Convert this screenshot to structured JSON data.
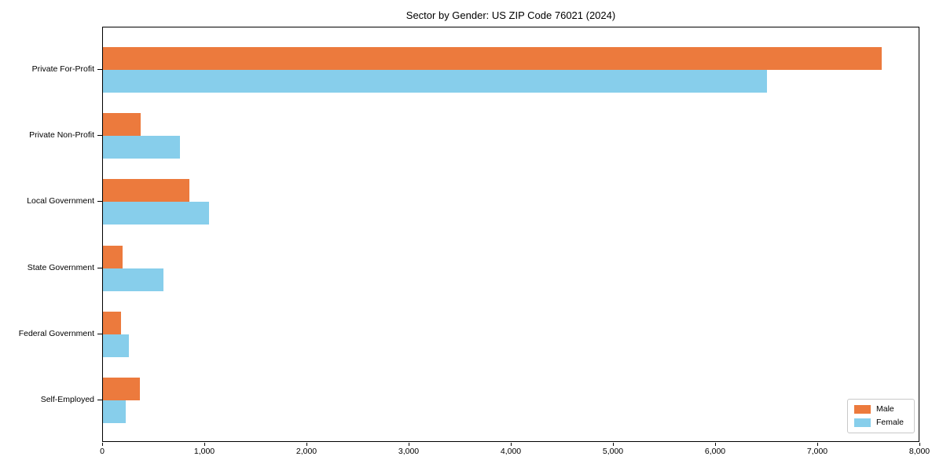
{
  "chart_data": {
    "type": "bar",
    "orientation": "horizontal",
    "title": "Sector by Gender: US ZIP Code 76021 (2024)",
    "categories": [
      "Private For-Profit",
      "Private Non-Profit",
      "Local Government",
      "State Government",
      "Federal Government",
      "Self-Employed"
    ],
    "series": [
      {
        "name": "Male",
        "color": "#EC7A3D",
        "values": [
          7640,
          370,
          845,
          190,
          180,
          365
        ]
      },
      {
        "name": "Female",
        "color": "#87CEEB",
        "values": [
          6510,
          755,
          1040,
          590,
          255,
          225
        ]
      }
    ],
    "xlabel": "",
    "ylabel": "",
    "xlim": [
      0,
      8000
    ],
    "x_ticks": [
      0,
      1000,
      2000,
      3000,
      4000,
      5000,
      6000,
      7000,
      8000
    ],
    "x_tick_labels": [
      "0",
      "1,000",
      "2,000",
      "3,000",
      "4,000",
      "5,000",
      "6,000",
      "7,000",
      "8,000"
    ],
    "grid": false,
    "legend": {
      "position": "lower right",
      "entries": [
        "Male",
        "Female"
      ]
    },
    "colors": {
      "axis": "#000000",
      "background": "#ffffff",
      "legend_border": "#c9c9c9"
    }
  }
}
